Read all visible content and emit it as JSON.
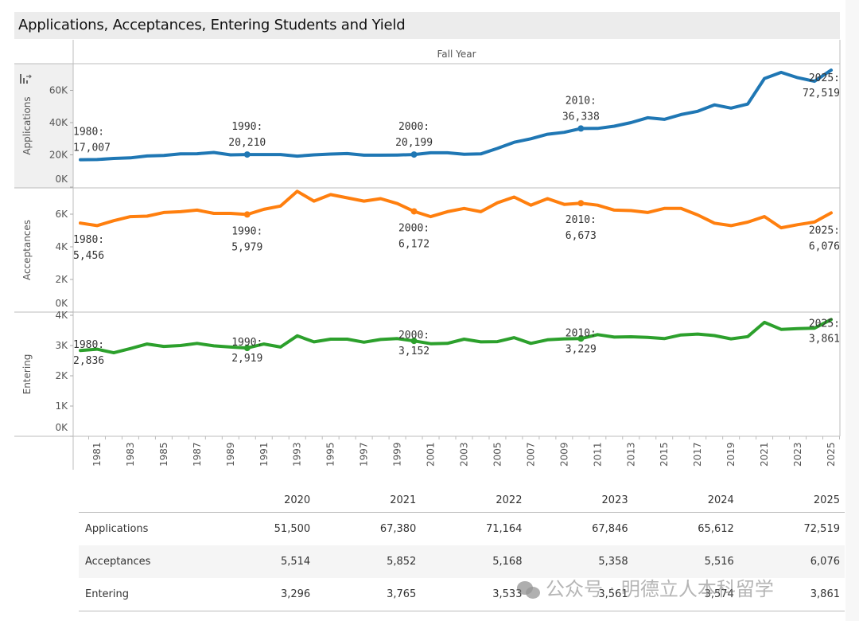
{
  "title": "Applications, Acceptances, Entering Students and Yield",
  "header_label": "Fall Year",
  "icons": {
    "sort": "sort-icon",
    "watermark": "wechat-icon"
  },
  "chart_data": {
    "type": "line",
    "title": "Applications, Acceptances, Entering Students and Yield",
    "xlabel": "Fall Year",
    "x": [
      1980,
      1981,
      1982,
      1983,
      1984,
      1985,
      1986,
      1987,
      1988,
      1989,
      1990,
      1991,
      1992,
      1993,
      1994,
      1995,
      1996,
      1997,
      1998,
      1999,
      2000,
      2001,
      2002,
      2003,
      2004,
      2005,
      2006,
      2007,
      2008,
      2009,
      2010,
      2011,
      2012,
      2013,
      2014,
      2015,
      2016,
      2017,
      2018,
      2019,
      2020,
      2021,
      2022,
      2023,
      2024,
      2025
    ],
    "x_tick_labels": [
      "1981",
      "1983",
      "1985",
      "1987",
      "1989",
      "1991",
      "1993",
      "1995",
      "1997",
      "1999",
      "2001",
      "2003",
      "2005",
      "2007",
      "2009",
      "2011",
      "2013",
      "2015",
      "2017",
      "2019",
      "2021",
      "2023",
      "2025"
    ],
    "grid": false,
    "legend": "none",
    "series": [
      {
        "name": "Applications",
        "axis_label": "Applications",
        "color": "#1f77b4",
        "ylim": [
          0,
          75000
        ],
        "y_ticks": [
          0,
          20000,
          40000,
          60000
        ],
        "y_tick_labels": [
          "0K",
          "20K",
          "40K",
          "60K"
        ],
        "values": [
          17007,
          17100,
          17800,
          18100,
          19300,
          19600,
          20600,
          20700,
          21500,
          20000,
          20210,
          20200,
          20200,
          19200,
          20000,
          20500,
          20800,
          19800,
          19800,
          19900,
          20199,
          21300,
          21300,
          20400,
          20600,
          24000,
          27800,
          30000,
          32800,
          34000,
          36338,
          36400,
          37800,
          40000,
          43000,
          42000,
          45000,
          47000,
          51000,
          49000,
          51500,
          67380,
          71164,
          67846,
          65612,
          72519
        ],
        "annotations": [
          {
            "year": 1980,
            "label": "1980:",
            "value": "17,007"
          },
          {
            "year": 1990,
            "label": "1990:",
            "value": "20,210"
          },
          {
            "year": 2000,
            "label": "2000:",
            "value": "20,199"
          },
          {
            "year": 2010,
            "label": "2010:",
            "value": "36,338"
          },
          {
            "year": 2025,
            "label": "2025:",
            "value": "72,519"
          }
        ]
      },
      {
        "name": "Acceptances",
        "axis_label": "Acceptances",
        "color": "#ff7f0e",
        "ylim": [
          0,
          7600
        ],
        "y_ticks": [
          0,
          2000,
          4000,
          6000
        ],
        "y_tick_labels": [
          "0K",
          "2K",
          "4K",
          "6K"
        ],
        "values": [
          5456,
          5300,
          5600,
          5850,
          5880,
          6100,
          6150,
          6250,
          6050,
          6050,
          5979,
          6300,
          6500,
          7400,
          6800,
          7200,
          7000,
          6800,
          6950,
          6650,
          6172,
          5850,
          6150,
          6350,
          6150,
          6700,
          7050,
          6550,
          6950,
          6600,
          6673,
          6550,
          6250,
          6220,
          6100,
          6350,
          6350,
          5950,
          5450,
          5300,
          5514,
          5852,
          5168,
          5358,
          5516,
          6076
        ],
        "annotations": [
          {
            "year": 1980,
            "label": "1980:",
            "value": "5,456"
          },
          {
            "year": 1990,
            "label": "1990:",
            "value": "5,979"
          },
          {
            "year": 2000,
            "label": "2000:",
            "value": "6,172"
          },
          {
            "year": 2010,
            "label": "2010:",
            "value": "6,673"
          },
          {
            "year": 2025,
            "label": "2025:",
            "value": "6,076"
          }
        ]
      },
      {
        "name": "Entering",
        "axis_label": "Entering",
        "color": "#2ca02c",
        "ylim": [
          0,
          4100
        ],
        "y_ticks": [
          0,
          1000,
          2000,
          3000,
          4000
        ],
        "y_tick_labels": [
          "0K",
          "1K",
          "2K",
          "3K",
          "4K"
        ],
        "values": [
          2836,
          2880,
          2760,
          2900,
          3050,
          2970,
          3000,
          3070,
          2990,
          2950,
          2919,
          3050,
          2950,
          3320,
          3120,
          3210,
          3210,
          3110,
          3200,
          3230,
          3152,
          3060,
          3070,
          3210,
          3120,
          3130,
          3260,
          3070,
          3190,
          3220,
          3229,
          3360,
          3280,
          3290,
          3270,
          3230,
          3350,
          3380,
          3330,
          3220,
          3296,
          3765,
          3533,
          3561,
          3574,
          3861
        ],
        "annotations": [
          {
            "year": 1980,
            "label": "1980:",
            "value": "2,836"
          },
          {
            "year": 1990,
            "label": "1990:",
            "value": "2,919"
          },
          {
            "year": 2000,
            "label": "2000:",
            "value": "3,152"
          },
          {
            "year": 2010,
            "label": "2010:",
            "value": "3,229"
          },
          {
            "year": 2025,
            "label": "2025:",
            "value": "3,861"
          }
        ]
      }
    ]
  },
  "table": {
    "columns": [
      "2020",
      "2021",
      "2022",
      "2023",
      "2024",
      "2025"
    ],
    "rows": [
      {
        "label": "Applications",
        "values": [
          "51,500",
          "67,380",
          "71,164",
          "67,846",
          "65,612",
          "72,519"
        ]
      },
      {
        "label": "Acceptances",
        "values": [
          "5,514",
          "5,852",
          "5,168",
          "5,358",
          "5,516",
          "6,076"
        ]
      },
      {
        "label": "Entering",
        "values": [
          "3,296",
          "3,765",
          "3,533",
          "3,561",
          "3,574",
          "3,861"
        ]
      }
    ]
  },
  "watermark": {
    "text": "公众号 · 明德立人本科留学"
  }
}
